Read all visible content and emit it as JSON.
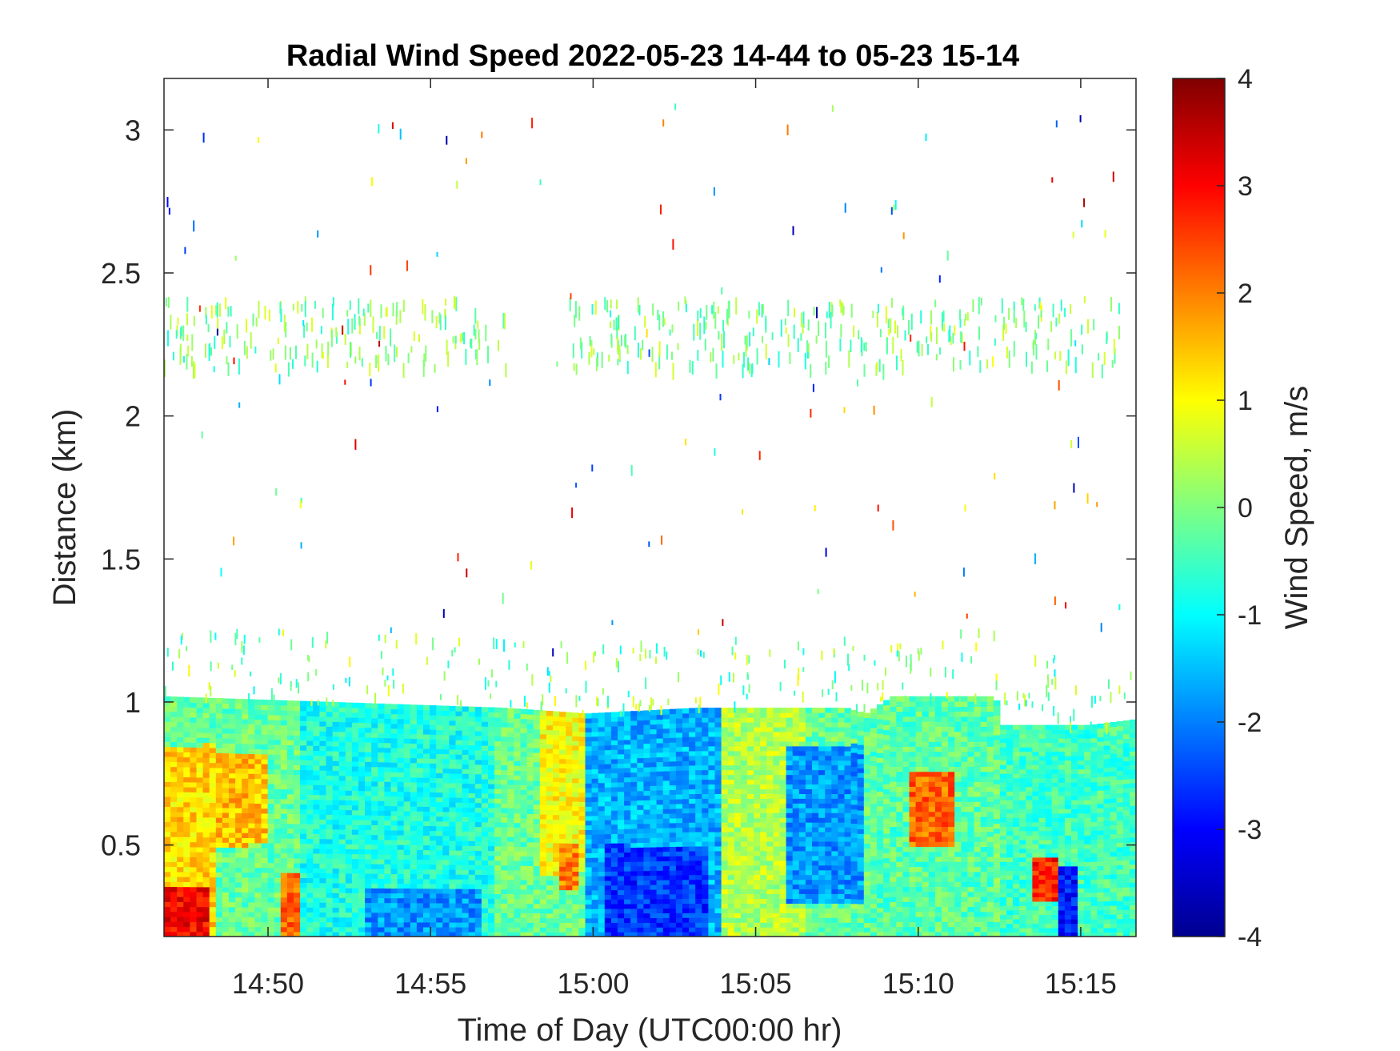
{
  "chart_data": {
    "type": "heatmap",
    "title": "Radial Wind Speed 2022-05-23 14-44 to 05-23 15-14",
    "xlabel": "Time of Day (UTC00:00 hr)",
    "ylabel": "Distance (km)",
    "colorbar_label": "Wind Speed, m/s",
    "colormap": "jet",
    "x_range_minutes_after_1400": [
      46.8,
      76.7
    ],
    "y_range_km": [
      0.18,
      3.18
    ],
    "x_ticks": [
      {
        "label": "14:50",
        "value": 50
      },
      {
        "label": "14:55",
        "value": 55
      },
      {
        "label": "15:00",
        "value": 60
      },
      {
        "label": "15:05",
        "value": 65
      },
      {
        "label": "15:10",
        "value": 70
      },
      {
        "label": "15:15",
        "value": 75
      }
    ],
    "y_ticks": [
      {
        "label": "0.5",
        "value": 0.5
      },
      {
        "label": "1",
        "value": 1.0
      },
      {
        "label": "1.5",
        "value": 1.5
      },
      {
        "label": "2",
        "value": 2.0
      },
      {
        "label": "2.5",
        "value": 2.5
      },
      {
        "label": "3",
        "value": 3.0
      }
    ],
    "colorbar_ticks": [
      "4",
      "3",
      "2",
      "1",
      "0",
      "-1",
      "-2",
      "-3",
      "-4"
    ],
    "clim": [
      -4,
      4
    ],
    "boundary_layer_top_km": [
      {
        "x": 46.8,
        "y": 1.02
      },
      {
        "x": 57.3,
        "y": 0.98
      },
      {
        "x": 59.8,
        "y": 0.96
      },
      {
        "x": 63.2,
        "y": 0.98
      },
      {
        "x": 67.8,
        "y": 0.98
      },
      {
        "x": 68.4,
        "y": 0.96
      },
      {
        "x": 69.2,
        "y": 1.02
      },
      {
        "x": 72.4,
        "y": 1.02
      },
      {
        "x": 72.5,
        "y": 0.92
      },
      {
        "x": 75.3,
        "y": 0.92
      },
      {
        "x": 76.7,
        "y": 0.94
      }
    ],
    "speed_regions_mps": [
      {
        "x": [
          46.8,
          48.4
        ],
        "y": [
          0.18,
          0.85
        ],
        "value": 1.3
      },
      {
        "x": [
          48.4,
          50.0
        ],
        "y": [
          0.5,
          0.82
        ],
        "value": 1.5
      },
      {
        "x": [
          46.8,
          48.2
        ],
        "y": [
          0.18,
          0.35
        ],
        "value": 3.0
      },
      {
        "x": [
          50.3,
          51.0
        ],
        "y": [
          0.18,
          0.4
        ],
        "value": 2.2
      },
      {
        "x": [
          51.0,
          57.0
        ],
        "y": [
          0.18,
          1.0
        ],
        "value": -0.8
      },
      {
        "x": [
          53.0,
          56.5
        ],
        "y": [
          0.18,
          0.35
        ],
        "value": -1.8
      },
      {
        "x": [
          58.3,
          59.8
        ],
        "y": [
          0.4,
          0.98
        ],
        "value": 1.0
      },
      {
        "x": [
          58.9,
          59.5
        ],
        "y": [
          0.35,
          0.5
        ],
        "value": 2.0
      },
      {
        "x": [
          59.8,
          64.0
        ],
        "y": [
          0.18,
          0.98
        ],
        "value": -1.6
      },
      {
        "x": [
          60.3,
          63.5
        ],
        "y": [
          0.18,
          0.5
        ],
        "value": -2.6
      },
      {
        "x": [
          64.0,
          66.5
        ],
        "y": [
          0.18,
          0.98
        ],
        "value": 0.4
      },
      {
        "x": [
          66.0,
          68.3
        ],
        "y": [
          0.3,
          0.85
        ],
        "value": -1.8
      },
      {
        "x": [
          68.5,
          72.4
        ],
        "y": [
          0.18,
          1.0
        ],
        "value": -0.3
      },
      {
        "x": [
          69.8,
          71.2
        ],
        "y": [
          0.5,
          0.75
        ],
        "value": 2.2
      },
      {
        "x": [
          72.5,
          76.7
        ],
        "y": [
          0.18,
          0.92
        ],
        "value": -0.5
      },
      {
        "x": [
          74.3,
          75.0
        ],
        "y": [
          0.18,
          0.42
        ],
        "value": -2.8
      },
      {
        "x": [
          73.6,
          74.3
        ],
        "y": [
          0.3,
          0.45
        ],
        "value": 2.8
      }
    ],
    "sparse_band_km": [
      2.18,
      2.42
    ],
    "sparse_band_value_mps": 0.0
  }
}
